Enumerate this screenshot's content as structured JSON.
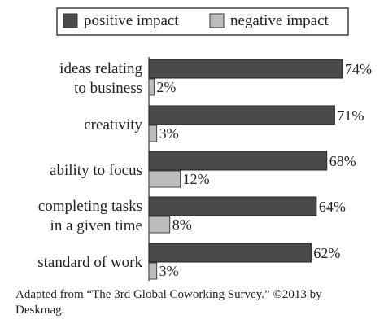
{
  "chart_data": {
    "type": "bar",
    "orientation": "horizontal",
    "categories": [
      [
        "ideas relating",
        "to business"
      ],
      [
        "creativity"
      ],
      [
        "ability to focus"
      ],
      [
        "completing tasks",
        "in a given time"
      ],
      [
        "standard of work"
      ]
    ],
    "series": [
      {
        "name": "positive impact",
        "values": [
          74,
          71,
          68,
          64,
          62
        ],
        "color": "#4a4a4a"
      },
      {
        "name": "negative impact",
        "values": [
          2,
          3,
          12,
          8,
          3
        ],
        "color": "#bdbdbd"
      }
    ],
    "value_suffix": "%",
    "xlim": [
      0,
      74
    ],
    "legend_position": "top",
    "grid": false,
    "axes_visible": false
  },
  "source_note": "Adapted from “The 3rd Global Coworking Survey.” ©2013 by Deskmag."
}
